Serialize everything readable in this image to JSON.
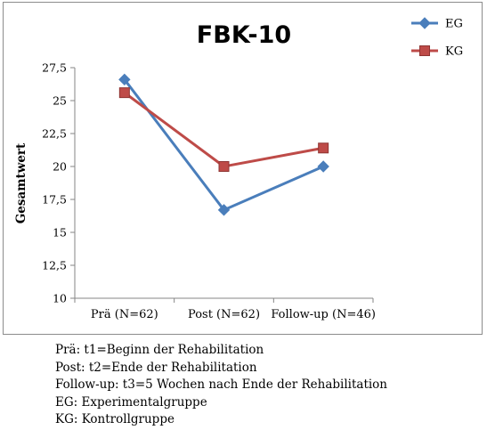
{
  "chart_data": {
    "type": "line",
    "title": "FBK-10",
    "xlabel": "",
    "ylabel": "Gesamtwert",
    "categories": [
      "Prä (N=62)",
      "Post (N=62)",
      "Follow-up (N=46)"
    ],
    "ylim": [
      10,
      27.5
    ],
    "yticks": [
      "10",
      "12,5",
      "15",
      "17,5",
      "20",
      "22,5",
      "25",
      "27,5"
    ],
    "ytick_values": [
      10,
      12.5,
      15,
      17.5,
      20,
      22.5,
      25,
      27.5
    ],
    "grid": false,
    "legend_position": "top-right",
    "series": [
      {
        "name": "EG",
        "values": [
          26.6,
          16.7,
          20.0
        ],
        "color": "#4a7ebb",
        "marker": "diamond"
      },
      {
        "name": "KG",
        "values": [
          25.6,
          20.0,
          21.4
        ],
        "color": "#be4b48",
        "marker": "square"
      }
    ]
  },
  "notes": [
    "Prä: t1=Beginn der Rehabilitation",
    "Post: t2=Ende der Rehabilitation",
    "Follow-up: t3=5 Wochen nach Ende der Rehabilitation",
    "EG: Experimentalgruppe",
    "KG: Kontrollgruppe"
  ]
}
